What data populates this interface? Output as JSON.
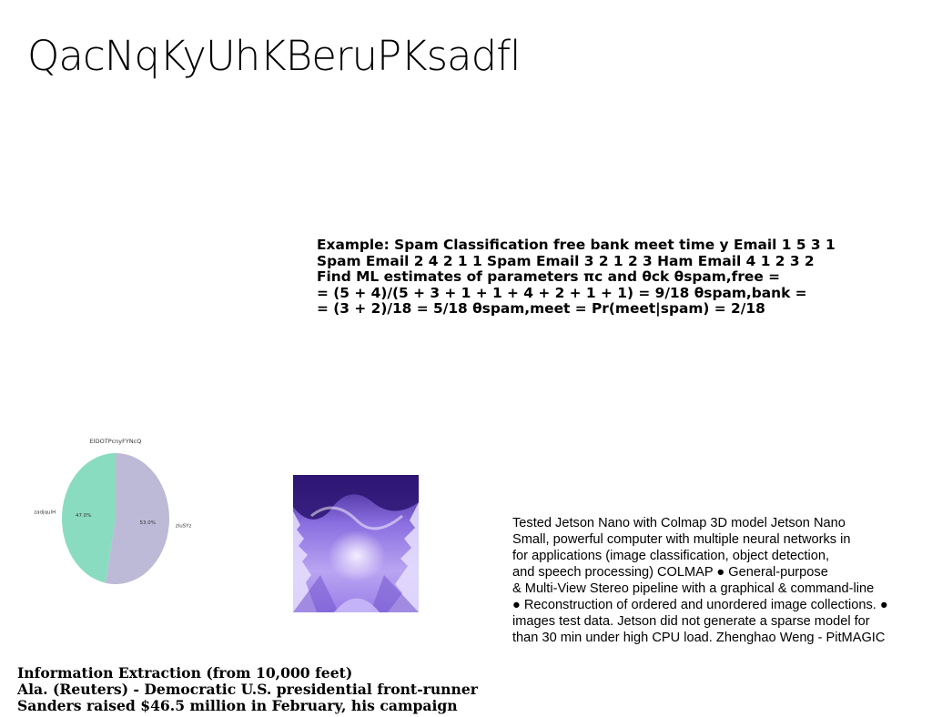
{
  "title": "QacNqKyUhKBeruPKsadfl",
  "spam_block": {
    "lines": [
      "Example: Spam Classification free bank meet time y Email 1 5 3 1",
      "Spam Email 2 4 2 1 1 Spam Email 3 2 1 2 3 Ham Email 4 1 2 3 2",
      "Find ML estimates of parameters πc and θck θspam,free =",
      "= (5 + 4)/(5 + 3 + 1 + 1 + 4 + 2 + 1 + 1) = 9/18 θspam,bank =",
      "= (3 + 2)/18 = 5/18 θspam,meet = Pr(meet|spam) = 2/18"
    ]
  },
  "chart_data": {
    "type": "pie",
    "title": "EIDOTPcnyFYNcQ",
    "labels": [
      "zadjqulH",
      "zluSYz"
    ],
    "values": [
      47.0,
      53.0
    ],
    "value_labels": [
      "47.0%",
      "53.0%"
    ],
    "colors": [
      "#8adcc0",
      "#bcbad6"
    ]
  },
  "jetson_block": {
    "lines": [
      "Tested Jetson Nano with Colmap 3D model Jetson Nano",
      "Small, powerful computer with multiple neural networks in",
      "for applications (image classification, object detection,",
      "and speech processing) COLMAP ● General-purpose",
      "& Multi-View Stereo pipeline with a graphical & command-line",
      "● Reconstruction of ordered and unordered image collections. ●",
      "images test data. Jetson did not generate a sparse model for",
      "than 30 min under high CPU load. Zhenghao Weng - PitMAGIC"
    ]
  },
  "ie_block": {
    "lines": [
      "Information Extraction (from 10,000 feet)",
      "Ala. (Reuters) - Democratic U.S. presidential front-runner",
      "Sanders raised $46.5 million in February, his campaign"
    ]
  }
}
